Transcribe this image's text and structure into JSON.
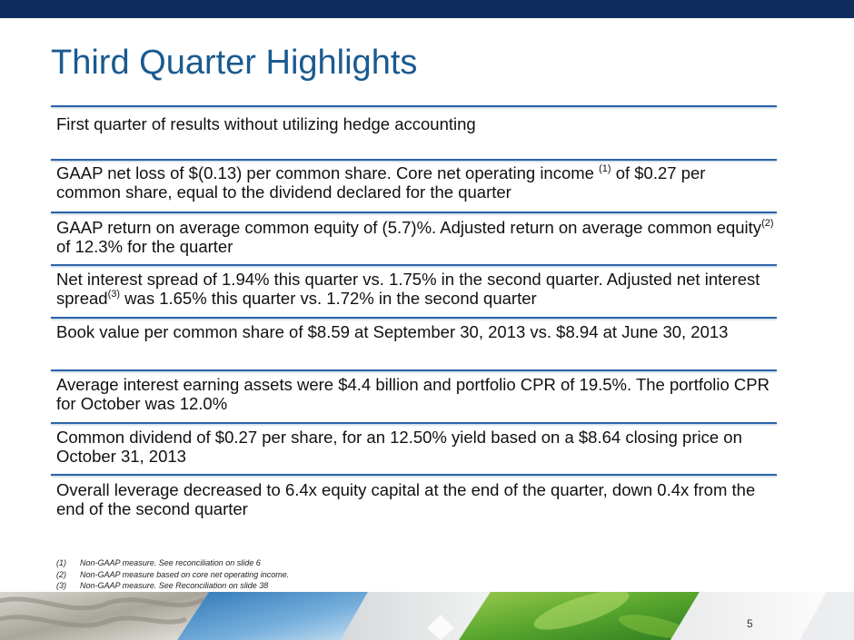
{
  "slide": {
    "title": "Third Quarter Highlights",
    "page_number": "5"
  },
  "bullets": [
    {
      "segments": [
        {
          "t": "First quarter of results without utilizing hedge accounting"
        }
      ]
    },
    {
      "segments": [
        {
          "t": "GAAP net loss of $(0.13) per common share.  Core net operating income "
        },
        {
          "t": "(1)",
          "sup": true
        },
        {
          "t": " of $0.27 per common share, equal to the dividend declared for the quarter"
        }
      ]
    },
    {
      "segments": [
        {
          "t": "GAAP return on average common equity of (5.7)%. Adjusted return on average common equity"
        },
        {
          "t": "(2)",
          "sup": true
        },
        {
          "t": " of 12.3% for the quarter"
        }
      ]
    },
    {
      "segments": [
        {
          "t": "Net interest spread of 1.94% this quarter vs. 1.75% in the second quarter. Adjusted net interest spread"
        },
        {
          "t": "(3)",
          "sup": true
        },
        {
          "t": " was 1.65% this quarter vs. 1.72% in the second quarter"
        }
      ]
    },
    {
      "segments": [
        {
          "t": "Book value per common share of $8.59 at September 30, 2013 vs. $8.94 at June 30, 2013"
        }
      ]
    },
    {
      "segments": [
        {
          "t": "Average interest earning assets were $4.4 billion and portfolio CPR of 19.5%. The portfolio CPR for October was 12.0%"
        }
      ]
    },
    {
      "segments": [
        {
          "t": "Common dividend of $0.27 per share, for an 12.50% yield based on a $8.64 closing price on October 31, 2013"
        }
      ]
    },
    {
      "segments": [
        {
          "t": "Overall leverage decreased to 6.4x equity capital at the end of the quarter, down 0.4x from the end of the second quarter"
        }
      ]
    }
  ],
  "footnotes": [
    {
      "num": "(1)",
      "text": "Non-GAAP measure. See reconciliation on slide 6"
    },
    {
      "num": "(2)",
      "text": "Non-GAAP measure based on core net operating income."
    },
    {
      "num": "(3)",
      "text": "Non-GAAP measure.  See Reconciliation on slide 38"
    }
  ],
  "colors": {
    "top_bar": "#0e2d5e",
    "title": "#1a5a90",
    "rule": "#2b64a8"
  }
}
